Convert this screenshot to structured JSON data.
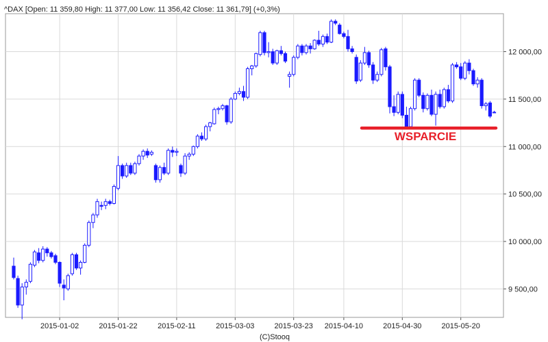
{
  "header": {
    "text": "^DAX [Open: 11 359,80  High: 11 377,00  Low: 11 356,42  Close: 11 361,79] (+0,3%)"
  },
  "credit": "(C)Stooq",
  "colors": {
    "down": "#1a1aff",
    "up_outline": "#1a1aff",
    "annotation": "#e8202a",
    "grid": "#d9d9d9"
  },
  "chart_data": {
    "type": "candlestick",
    "title": "^DAX",
    "ylim": [
      9200,
      12400
    ],
    "y_ticks": [
      {
        "value": 9500,
        "label": "9 500,00"
      },
      {
        "value": 10000,
        "label": "10 000,00"
      },
      {
        "value": 10500,
        "label": "10 500,00"
      },
      {
        "value": 11000,
        "label": "11 000,00"
      },
      {
        "value": 11500,
        "label": "11 500,00"
      },
      {
        "value": 12000,
        "label": "12 000,00"
      }
    ],
    "x_ticks": [
      {
        "index": 11,
        "label": "2015-01-02"
      },
      {
        "index": 25,
        "label": "2015-01-22"
      },
      {
        "index": 39,
        "label": "2015-02-11"
      },
      {
        "index": 53,
        "label": "2015-03-03"
      },
      {
        "index": 67,
        "label": "2015-03-23"
      },
      {
        "index": 79,
        "label": "2015-04-10"
      },
      {
        "index": 93,
        "label": "2015-04-30"
      },
      {
        "index": 107,
        "label": "2015-05-20"
      }
    ],
    "grid": true,
    "candles": [
      [
        9740,
        9830,
        9600,
        9620
      ],
      [
        9610,
        9640,
        9300,
        9330
      ],
      [
        9330,
        9560,
        9180,
        9520
      ],
      [
        9520,
        9600,
        9440,
        9570
      ],
      [
        9580,
        9780,
        9560,
        9760
      ],
      [
        9750,
        9910,
        9730,
        9890
      ],
      [
        9880,
        9930,
        9770,
        9800
      ],
      [
        9800,
        9950,
        9780,
        9920
      ],
      [
        9920,
        9940,
        9840,
        9880
      ],
      [
        9880,
        9900,
        9820,
        9840
      ],
      [
        9850,
        9870,
        9760,
        9780
      ],
      [
        9780,
        9790,
        9520,
        9560
      ],
      [
        9540,
        9600,
        9380,
        9510
      ],
      [
        9500,
        9660,
        9480,
        9640
      ],
      [
        9660,
        9880,
        9640,
        9860
      ],
      [
        9860,
        9880,
        9700,
        9720
      ],
      [
        9720,
        9800,
        9650,
        9780
      ],
      [
        9780,
        9980,
        9770,
        9960
      ],
      [
        9960,
        10220,
        9940,
        10200
      ],
      [
        10200,
        10300,
        10140,
        10280
      ],
      [
        10280,
        10450,
        10250,
        10420
      ],
      [
        10380,
        10420,
        10330,
        10370
      ],
      [
        10380,
        10450,
        10340,
        10420
      ],
      [
        10420,
        10440,
        10380,
        10400
      ],
      [
        10400,
        10600,
        10390,
        10580
      ],
      [
        10560,
        10900,
        10540,
        10800
      ],
      [
        10800,
        10820,
        10660,
        10690
      ],
      [
        10690,
        10830,
        10670,
        10800
      ],
      [
        10800,
        10830,
        10700,
        10720
      ],
      [
        10720,
        10840,
        10700,
        10820
      ],
      [
        10820,
        10920,
        10800,
        10900
      ],
      [
        10900,
        10970,
        10860,
        10950
      ],
      [
        10950,
        10980,
        10880,
        10910
      ],
      [
        10920,
        10960,
        10900,
        10940
      ],
      [
        10800,
        10820,
        10620,
        10650
      ],
      [
        10650,
        10800,
        10620,
        10780
      ],
      [
        10780,
        10830,
        10700,
        10720
      ],
      [
        10720,
        10980,
        10700,
        10960
      ],
      [
        10960,
        11000,
        10890,
        10940
      ],
      [
        10940,
        10980,
        10900,
        10950
      ],
      [
        10800,
        10820,
        10680,
        10720
      ],
      [
        10720,
        10930,
        10700,
        10900
      ],
      [
        10900,
        10940,
        10860,
        10920
      ],
      [
        10920,
        11010,
        10900,
        11000
      ],
      [
        11000,
        11130,
        10980,
        11110
      ],
      [
        11110,
        11150,
        11060,
        11080
      ],
      [
        11080,
        11230,
        11060,
        11210
      ],
      [
        11210,
        11260,
        11160,
        11250
      ],
      [
        11240,
        11410,
        11230,
        11390
      ],
      [
        11390,
        11420,
        11340,
        11400
      ],
      [
        11400,
        11450,
        11380,
        11430
      ],
      [
        11430,
        11440,
        11230,
        11260
      ],
      [
        11260,
        11520,
        11240,
        11500
      ],
      [
        11500,
        11580,
        11490,
        11560
      ],
      [
        11560,
        11620,
        11540,
        11580
      ],
      [
        11580,
        11640,
        11480,
        11520
      ],
      [
        11520,
        11840,
        11500,
        11820
      ],
      [
        11820,
        11860,
        11750,
        11850
      ],
      [
        11850,
        11990,
        11830,
        11980
      ],
      [
        11970,
        12220,
        11950,
        12200
      ],
      [
        12200,
        12220,
        11960,
        11990
      ],
      [
        11990,
        12100,
        11940,
        12000
      ],
      [
        12000,
        12030,
        11860,
        11880
      ],
      [
        11880,
        12020,
        11860,
        12010
      ],
      [
        12010,
        12060,
        11960,
        11980
      ],
      [
        11980,
        12000,
        11880,
        11900
      ],
      [
        11740,
        11790,
        11620,
        11760
      ],
      [
        11760,
        11960,
        11740,
        11940
      ],
      [
        11940,
        12080,
        11920,
        12060
      ],
      [
        12060,
        12080,
        11960,
        11990
      ],
      [
        11990,
        12080,
        11970,
        12060
      ],
      [
        12060,
        12090,
        11980,
        12030
      ],
      [
        12030,
        12130,
        12020,
        12120
      ],
      [
        12120,
        12220,
        12060,
        12080
      ],
      [
        12080,
        12180,
        12050,
        12160
      ],
      [
        12160,
        12190,
        12080,
        12100
      ],
      [
        12100,
        12340,
        12090,
        12320
      ],
      [
        12320,
        12340,
        12280,
        12300
      ],
      [
        12280,
        12300,
        12180,
        12190
      ],
      [
        12190,
        12210,
        12140,
        12160
      ],
      [
        12160,
        12230,
        12000,
        12030
      ],
      [
        12030,
        12060,
        11980,
        12000
      ],
      [
        11940,
        11970,
        11660,
        11690
      ],
      [
        11700,
        11910,
        11680,
        11880
      ],
      [
        11880,
        12050,
        11860,
        11990
      ],
      [
        11990,
        12010,
        11830,
        11860
      ],
      [
        11860,
        11890,
        11660,
        11700
      ],
      [
        11700,
        11790,
        11680,
        11760
      ],
      [
        11760,
        12040,
        11740,
        12020
      ],
      [
        12030,
        12050,
        11800,
        11840
      ],
      [
        11840,
        11860,
        11350,
        11420
      ],
      [
        11420,
        11540,
        11320,
        11360
      ],
      [
        11360,
        11580,
        11340,
        11550
      ],
      [
        11550,
        11580,
        11300,
        11330
      ],
      [
        11330,
        11420,
        11180,
        11210
      ],
      [
        11210,
        11420,
        11200,
        11400
      ],
      [
        11400,
        11720,
        11380,
        11700
      ],
      [
        11700,
        11720,
        11520,
        11540
      ],
      [
        11540,
        11570,
        11360,
        11400
      ],
      [
        11400,
        11560,
        11380,
        11540
      ],
      [
        11540,
        11600,
        11320,
        11340
      ],
      [
        11340,
        11580,
        11220,
        11550
      ],
      [
        11550,
        11600,
        11400,
        11420
      ],
      [
        11420,
        11620,
        11400,
        11600
      ],
      [
        11600,
        11650,
        11460,
        11480
      ],
      [
        11480,
        11880,
        11460,
        11860
      ],
      [
        11860,
        11890,
        11820,
        11840
      ],
      [
        11840,
        11880,
        11700,
        11720
      ],
      [
        11720,
        11900,
        11700,
        11880
      ],
      [
        11880,
        11920,
        11760,
        11800
      ],
      [
        11800,
        11820,
        11640,
        11660
      ],
      [
        11660,
        11730,
        11620,
        11700
      ],
      [
        11700,
        11720,
        11400,
        11430
      ],
      [
        11430,
        11470,
        11380,
        11450
      ],
      [
        11460,
        11480,
        11300,
        11320
      ],
      [
        11360,
        11377,
        11356,
        11362
      ]
    ],
    "support": {
      "value": 11195,
      "label": "WSPARCIE",
      "from_index": 84
    }
  }
}
